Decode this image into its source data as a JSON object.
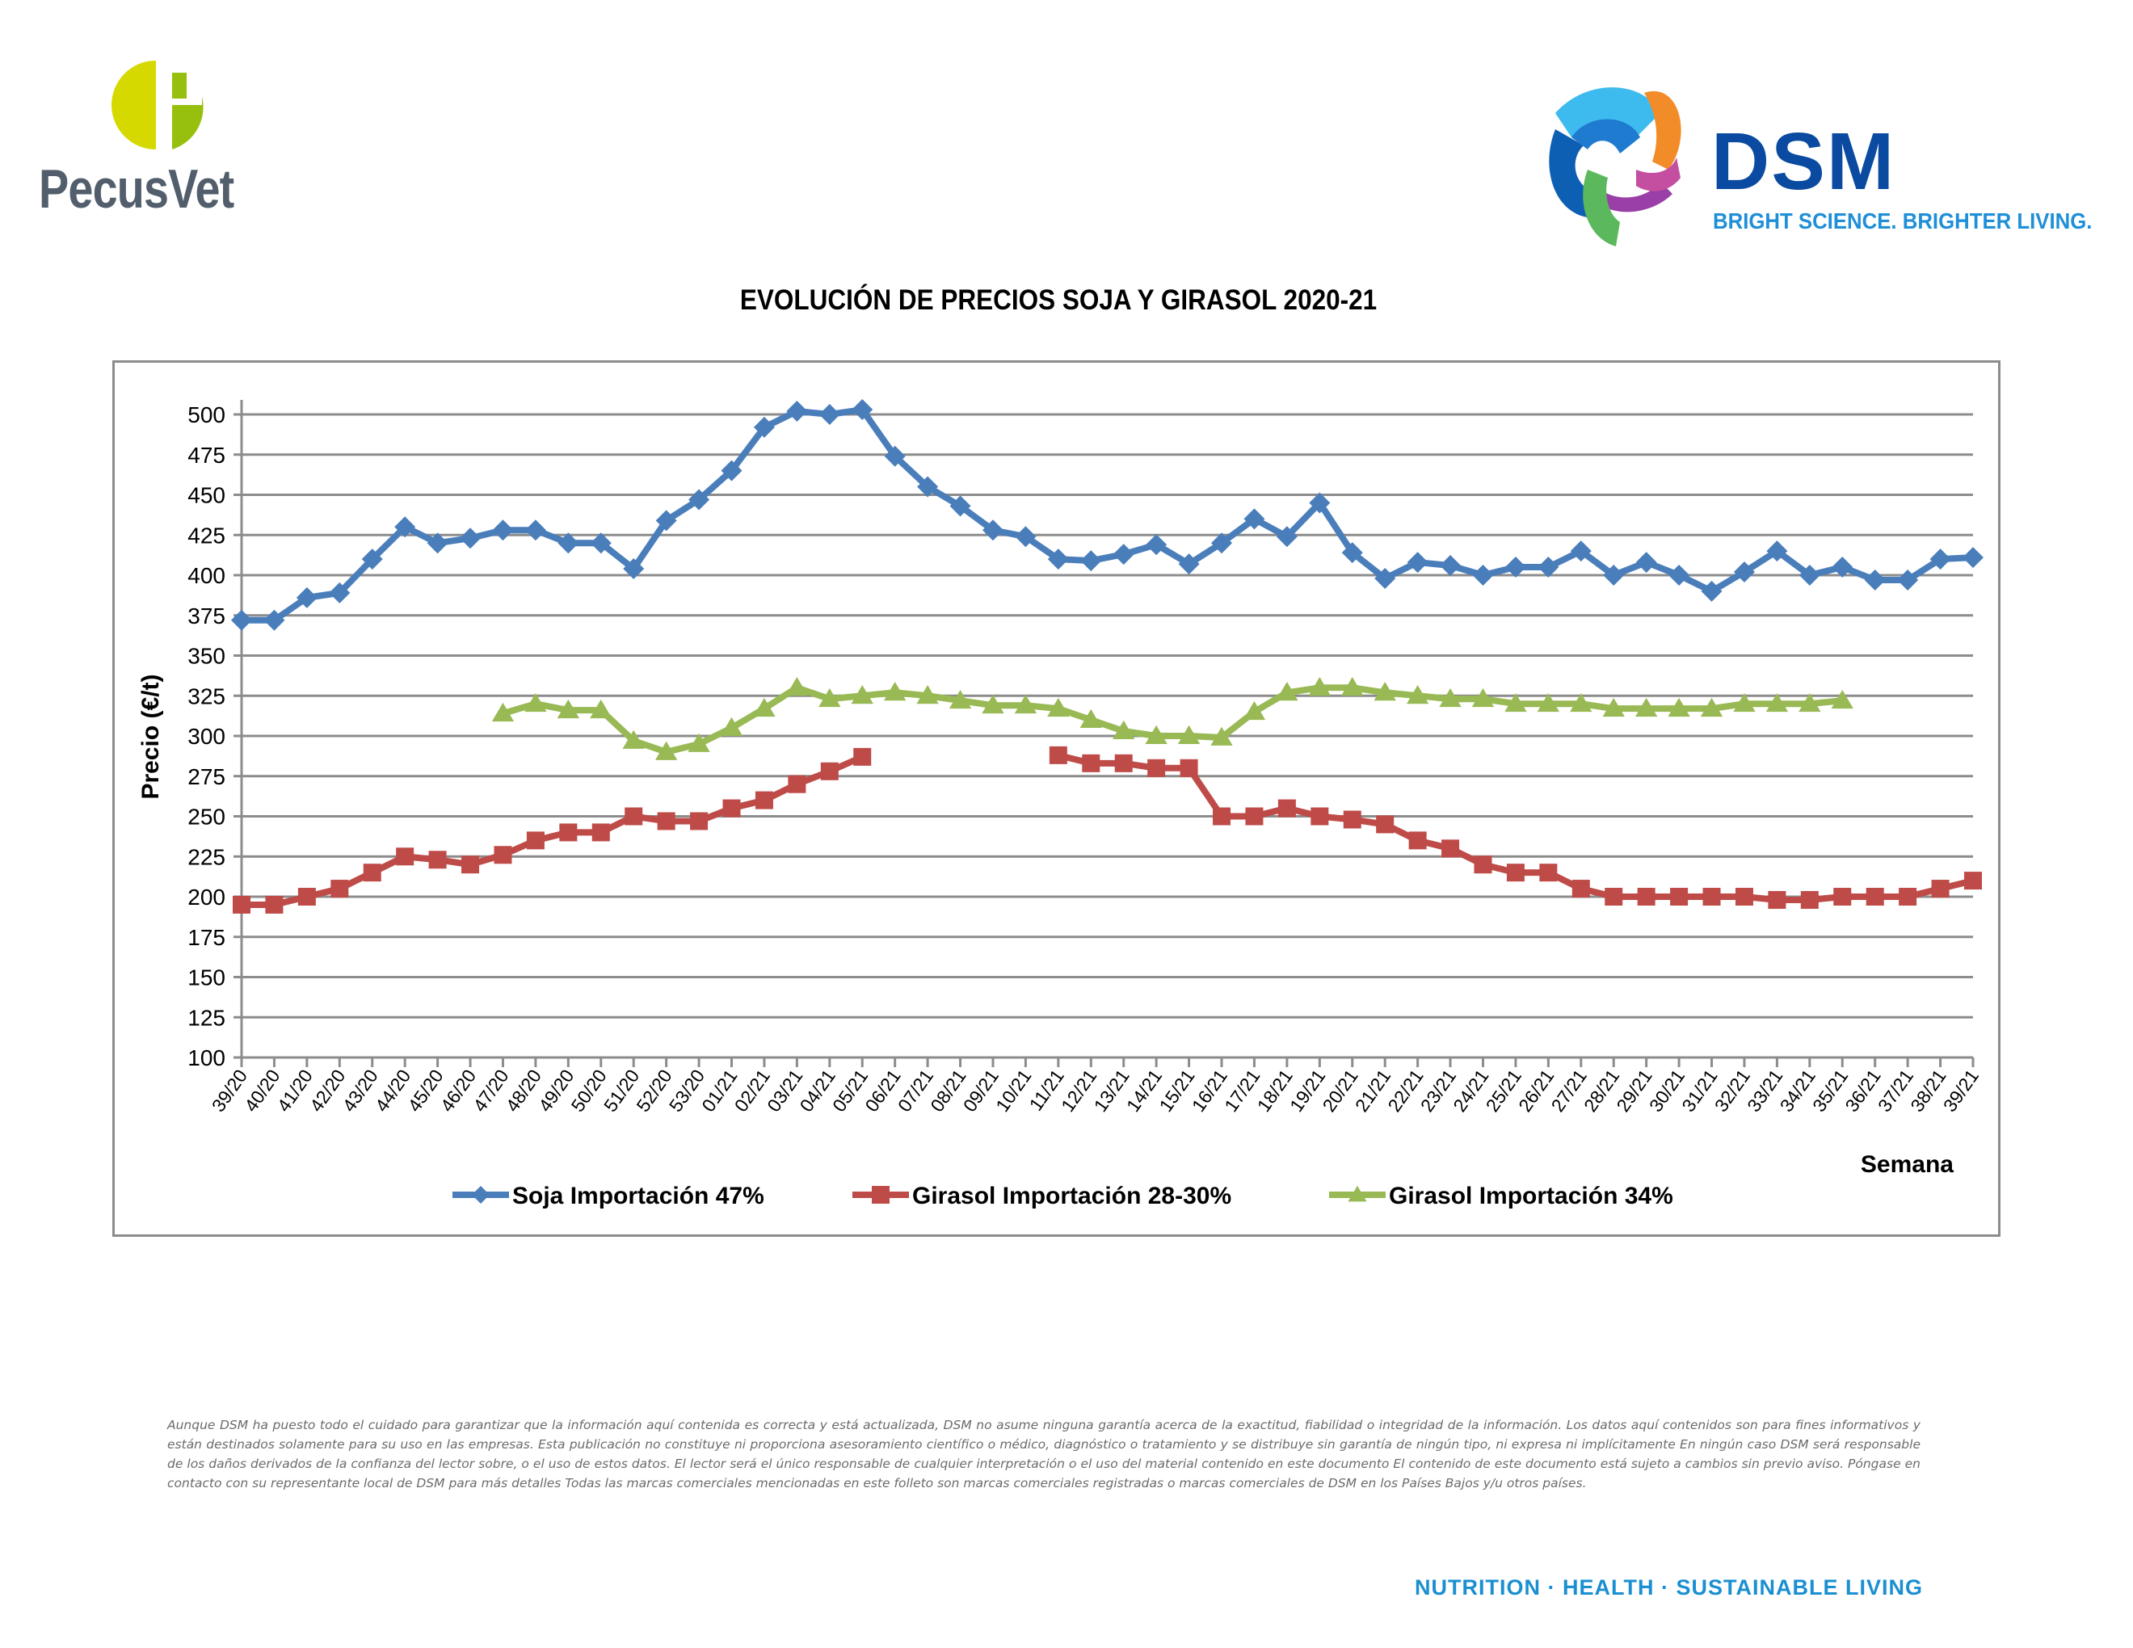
{
  "header": {
    "pecusvet_name": "PecusVet",
    "dsm_name": "DSM",
    "dsm_tagline": "BRIGHT SCIENCE. BRIGHTER LIVING."
  },
  "colors": {
    "soja": "#4a7ebb",
    "girasol_28_30": "#be4b48",
    "girasol_34": "#98b954",
    "grid": "#8c8c8c",
    "pecus_lime": "#d5d900",
    "pecus_green": "#97bf0d",
    "pecus_text": "#525e6b",
    "dsm_blue": "#0a4aa0",
    "dsm_light_blue": "#1f8fd8"
  },
  "chart_data": {
    "type": "line",
    "title": "EVOLUCIÓN DE PRECIOS SOJA Y GIRASOL 2020-21",
    "xlabel": "Semana",
    "ylabel": "Precio (€/t)",
    "ylim": [
      100,
      500
    ],
    "yticks": [
      100,
      125,
      150,
      175,
      200,
      225,
      250,
      275,
      300,
      325,
      350,
      375,
      400,
      425,
      450,
      475,
      500
    ],
    "grid": true,
    "legend_position": "bottom",
    "categories": [
      "39/20",
      "40/20",
      "41/20",
      "42/20",
      "43/20",
      "44/20",
      "45/20",
      "46/20",
      "47/20",
      "48/20",
      "49/20",
      "50/20",
      "51/20",
      "52/20",
      "53/20",
      "01/21",
      "02/21",
      "03/21",
      "04/21",
      "05/21",
      "06/21",
      "07/21",
      "08/21",
      "09/21",
      "10/21",
      "11/21",
      "12/21",
      "13/21",
      "14/21",
      "15/21",
      "16/21",
      "17/21",
      "18/21",
      "19/21",
      "20/21",
      "21/21",
      "22/21",
      "23/21",
      "24/21",
      "25/21",
      "26/21",
      "27/21",
      "28/21",
      "29/21",
      "30/21",
      "31/21",
      "32/21",
      "33/21",
      "34/21",
      "35/21",
      "36/21",
      "37/21",
      "38/21",
      "39/21"
    ],
    "series": [
      {
        "name": "Soja Importación 47%",
        "marker": "diamond",
        "color_key": "soja",
        "values": [
          372,
          372,
          386,
          389,
          410,
          430,
          420,
          423,
          428,
          428,
          420,
          420,
          404,
          434,
          447,
          465,
          492,
          502,
          500,
          503,
          474,
          455,
          443,
          428,
          424,
          410,
          409,
          413,
          419,
          407,
          420,
          435,
          424,
          445,
          414,
          398,
          408,
          406,
          400,
          405,
          405,
          415,
          400,
          408,
          400,
          390,
          402,
          415,
          400,
          405,
          397,
          397,
          410,
          411
        ]
      },
      {
        "name": "Girasol Importación 28-30%",
        "marker": "square",
        "color_key": "girasol_28_30",
        "values": [
          195,
          195,
          200,
          205,
          215,
          225,
          223,
          220,
          226,
          235,
          240,
          240,
          250,
          247,
          247,
          255,
          260,
          270,
          278,
          287,
          null,
          null,
          null,
          null,
          null,
          288,
          283,
          283,
          280,
          280,
          250,
          250,
          255,
          250,
          248,
          245,
          235,
          230,
          220,
          215,
          215,
          205,
          200,
          200,
          200,
          200,
          200,
          198,
          198,
          200,
          200,
          200,
          205,
          210
        ]
      },
      {
        "name": "Girasol Importación 34%",
        "marker": "triangle",
        "color_key": "girasol_34",
        "values": [
          null,
          null,
          null,
          null,
          null,
          null,
          null,
          null,
          314,
          320,
          316,
          316,
          297,
          290,
          295,
          305,
          317,
          330,
          323,
          325,
          327,
          325,
          322,
          319,
          319,
          317,
          310,
          303,
          300,
          300,
          299,
          315,
          327,
          330,
          330,
          327,
          325,
          323,
          323,
          320,
          320,
          320,
          317,
          317,
          317,
          317,
          320,
          320,
          320,
          322,
          null,
          null,
          null,
          null
        ]
      }
    ]
  },
  "disclaimer": "Aunque DSM ha puesto todo el cuidado para garantizar que la información aquí contenida es correcta y está actualizada, DSM no asume ninguna garantía acerca de la exactitud, fiabilidad o integridad de la información. Los datos aquí contenidos son para fines informativos y están destinados solamente para su uso en las empresas. Esta publicación no constituye ni proporciona asesoramiento científico o médico, diagnóstico o tratamiento y se distribuye sin garantía de ningún tipo, ni expresa ni implícitamente En ningún caso DSM será responsable de los daños derivados de la confianza del lector sobre, o el uso de estos datos. El lector será el único responsable de cualquier interpretación o el uso del material contenido en este documento El contenido de este documento está sujeto a cambios sin previo aviso. Póngase en contacto con su representante local de DSM para más detalles Todas las marcas comerciales mencionadas en este folleto son marcas comerciales registradas o marcas comerciales de DSM en los Países Bajos y/u otros países.",
  "footer_tagline": "NUTRITION · HEALTH · SUSTAINABLE LIVING"
}
